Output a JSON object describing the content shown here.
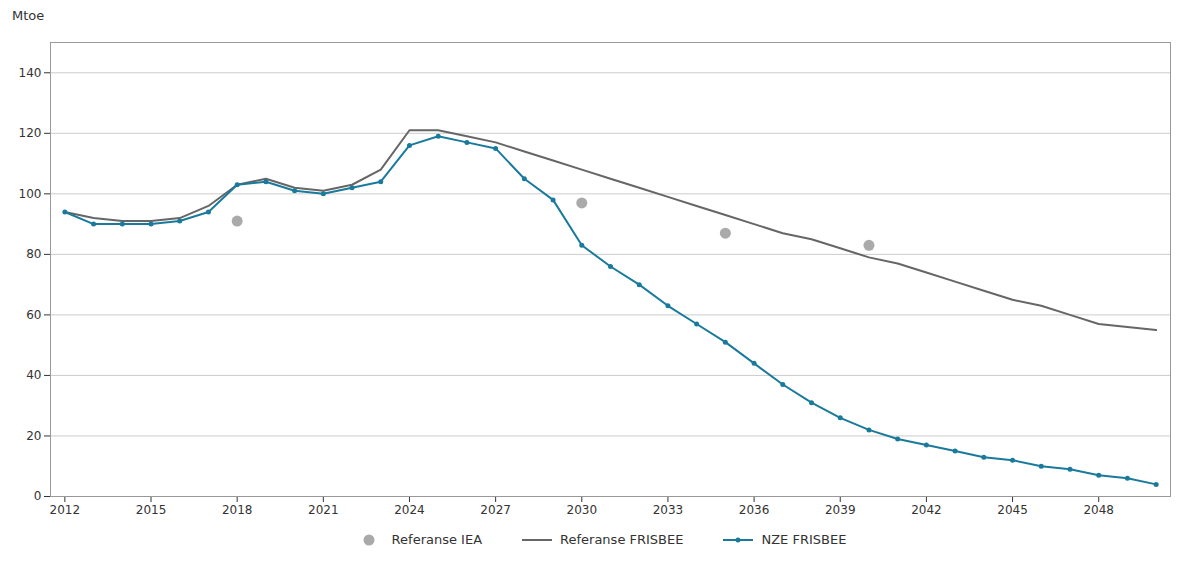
{
  "chart_data": {
    "type": "line",
    "ylabel": "Mtoe",
    "xlim": [
      2011.5,
      2050.5
    ],
    "ylim": [
      0,
      150
    ],
    "xticks": [
      2012,
      2015,
      2018,
      2021,
      2024,
      2027,
      2030,
      2033,
      2036,
      2039,
      2042,
      2045,
      2048
    ],
    "yticks": [
      0,
      20,
      40,
      60,
      80,
      100,
      120,
      140
    ],
    "grid": true,
    "legend": "bottom",
    "series": [
      {
        "name": "Referanse IEA",
        "type": "scatter",
        "marker": "circle",
        "color": "#aaaaaa",
        "x": [
          2018,
          2030,
          2035,
          2040
        ],
        "values": [
          91,
          97,
          87,
          83
        ]
      },
      {
        "name": "Referanse FRISBEE",
        "type": "line",
        "color": "#666666",
        "x": [
          2012,
          2013,
          2014,
          2015,
          2016,
          2017,
          2018,
          2019,
          2020,
          2021,
          2022,
          2023,
          2024,
          2025,
          2026,
          2027,
          2028,
          2029,
          2030,
          2031,
          2032,
          2033,
          2034,
          2035,
          2036,
          2037,
          2038,
          2039,
          2040,
          2041,
          2042,
          2043,
          2044,
          2045,
          2046,
          2047,
          2048,
          2049,
          2050
        ],
        "values": [
          94,
          92,
          91,
          91,
          92,
          96,
          103,
          105,
          102,
          101,
          103,
          108,
          121,
          121,
          119,
          117,
          114,
          111,
          108,
          105,
          102,
          99,
          96,
          93,
          90,
          87,
          85,
          82,
          79,
          77,
          74,
          71,
          68,
          65,
          63,
          60,
          57,
          56,
          55
        ]
      },
      {
        "name": "NZE FRISBEE",
        "type": "line",
        "marker": "circle",
        "color": "#1a7a9c",
        "x": [
          2012,
          2013,
          2014,
          2015,
          2016,
          2017,
          2018,
          2019,
          2020,
          2021,
          2022,
          2023,
          2024,
          2025,
          2026,
          2027,
          2028,
          2029,
          2030,
          2031,
          2032,
          2033,
          2034,
          2035,
          2036,
          2037,
          2038,
          2039,
          2040,
          2041,
          2042,
          2043,
          2044,
          2045,
          2046,
          2047,
          2048,
          2049,
          2050
        ],
        "values": [
          94,
          90,
          90,
          90,
          91,
          94,
          103,
          104,
          101,
          100,
          102,
          104,
          116,
          119,
          117,
          115,
          105,
          98,
          83,
          76,
          70,
          63,
          57,
          51,
          44,
          37,
          31,
          26,
          22,
          19,
          17,
          15,
          13,
          12,
          10,
          9,
          7,
          6,
          4
        ]
      }
    ]
  }
}
